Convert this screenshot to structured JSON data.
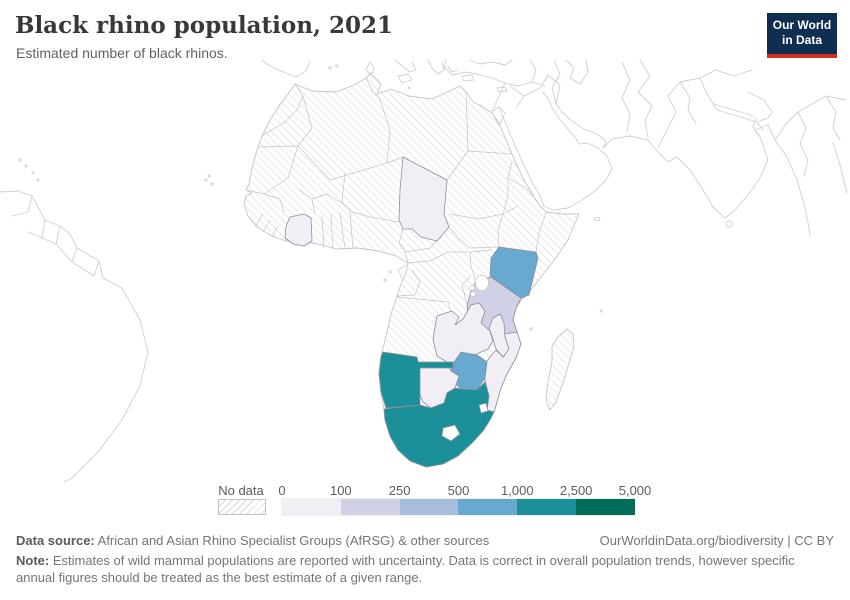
{
  "header": {
    "title": "Black rhino population, 2021",
    "subtitle": "Estimated number of black rhinos."
  },
  "logo": {
    "line1": "Our World",
    "line2": "in Data"
  },
  "legend": {
    "no_data_label": "No data",
    "ticks": [
      "0",
      "100",
      "250",
      "500",
      "1,000",
      "2,500",
      "5,000"
    ],
    "bin_colors": [
      "#f1eef6",
      "#d0d1e6",
      "#a6bddb",
      "#67a9cf",
      "#1c9099",
      "#016c59"
    ]
  },
  "chart_data": {
    "type": "choropleth_map",
    "title": "Black rhino population, 2021",
    "unit": "estimated number of black rhinos",
    "legend_bins": [
      "0-100",
      "100-250",
      "250-500",
      "500-1,000",
      "1,000-2,500",
      "2,500-5,000"
    ],
    "legend_colors": [
      "#f1eef6",
      "#d0d1e6",
      "#a6bddb",
      "#67a9cf",
      "#1c9099",
      "#016c59"
    ],
    "no_data": "hatched",
    "countries": [
      {
        "name": "Chad",
        "range": "0-100",
        "color": "#f1eef6"
      },
      {
        "name": "Cote d'Ivoire",
        "range": "0-100",
        "color": "#f1eef6"
      },
      {
        "name": "Kenya",
        "range": "500-1,000",
        "color": "#67a9cf"
      },
      {
        "name": "Tanzania",
        "range": "100-250",
        "color": "#d0d1e6"
      },
      {
        "name": "Zambia",
        "range": "0-100",
        "color": "#f1eef6"
      },
      {
        "name": "Malawi",
        "range": "0-100",
        "color": "#f1eef6"
      },
      {
        "name": "Mozambique",
        "range": "0-100",
        "color": "#f1eef6"
      },
      {
        "name": "Zimbabwe",
        "range": "500-1,000",
        "color": "#67a9cf"
      },
      {
        "name": "Botswana",
        "range": "0-100",
        "color": "#f1eef6"
      },
      {
        "name": "Namibia",
        "range": "1,000-2,500",
        "color": "#1c9099"
      },
      {
        "name": "South Africa",
        "range": "1,000-2,500",
        "color": "#1c9099"
      }
    ]
  },
  "footer": {
    "data_source_label": "Data source:",
    "data_source": " African and Asian Rhino Specialist Groups (AfRSG) & other sources",
    "attribution": "OurWorldinData.org/biodiversity | CC BY",
    "note_label": "Note:",
    "note": " Estimates of wild mammal populations are reported with uncertainty. Data is correct in overall population trends, however specific annual figures should be treated as the best estimate of a given range."
  }
}
